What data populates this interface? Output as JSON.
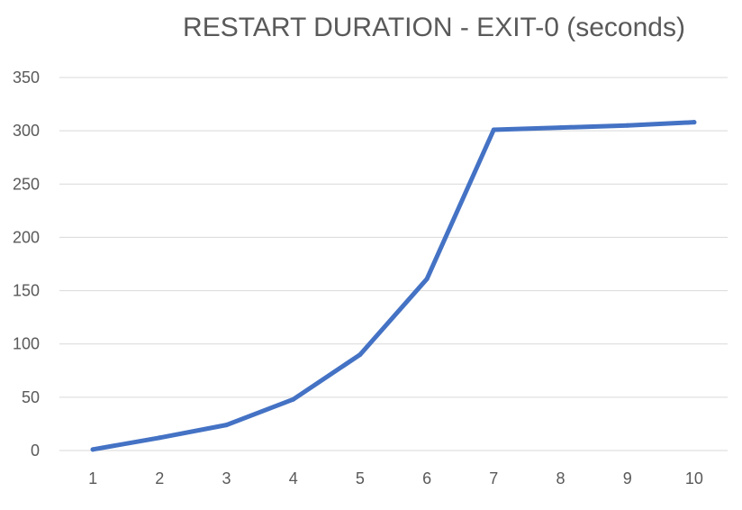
{
  "chart_data": {
    "type": "line",
    "title": "RESTART DURATION - EXIT-0 (seconds)",
    "xlabel": "",
    "ylabel": "",
    "x": [
      1,
      2,
      3,
      4,
      5,
      6,
      7,
      8,
      9,
      10
    ],
    "x_tick_labels": [
      "1",
      "2",
      "3",
      "4",
      "5",
      "6",
      "7",
      "8",
      "9",
      "10"
    ],
    "y_tick_labels": [
      "0",
      "50",
      "100",
      "150",
      "200",
      "250",
      "300",
      "350"
    ],
    "series": [
      {
        "values": [
          1,
          12,
          24,
          48,
          90,
          161,
          301,
          303,
          305,
          308
        ],
        "color": "#4472c4"
      }
    ],
    "ylim": [
      0,
      350
    ],
    "y_tick_step": 50,
    "grid": true,
    "legend": "none",
    "gridline_color": "#d9d9d9"
  }
}
